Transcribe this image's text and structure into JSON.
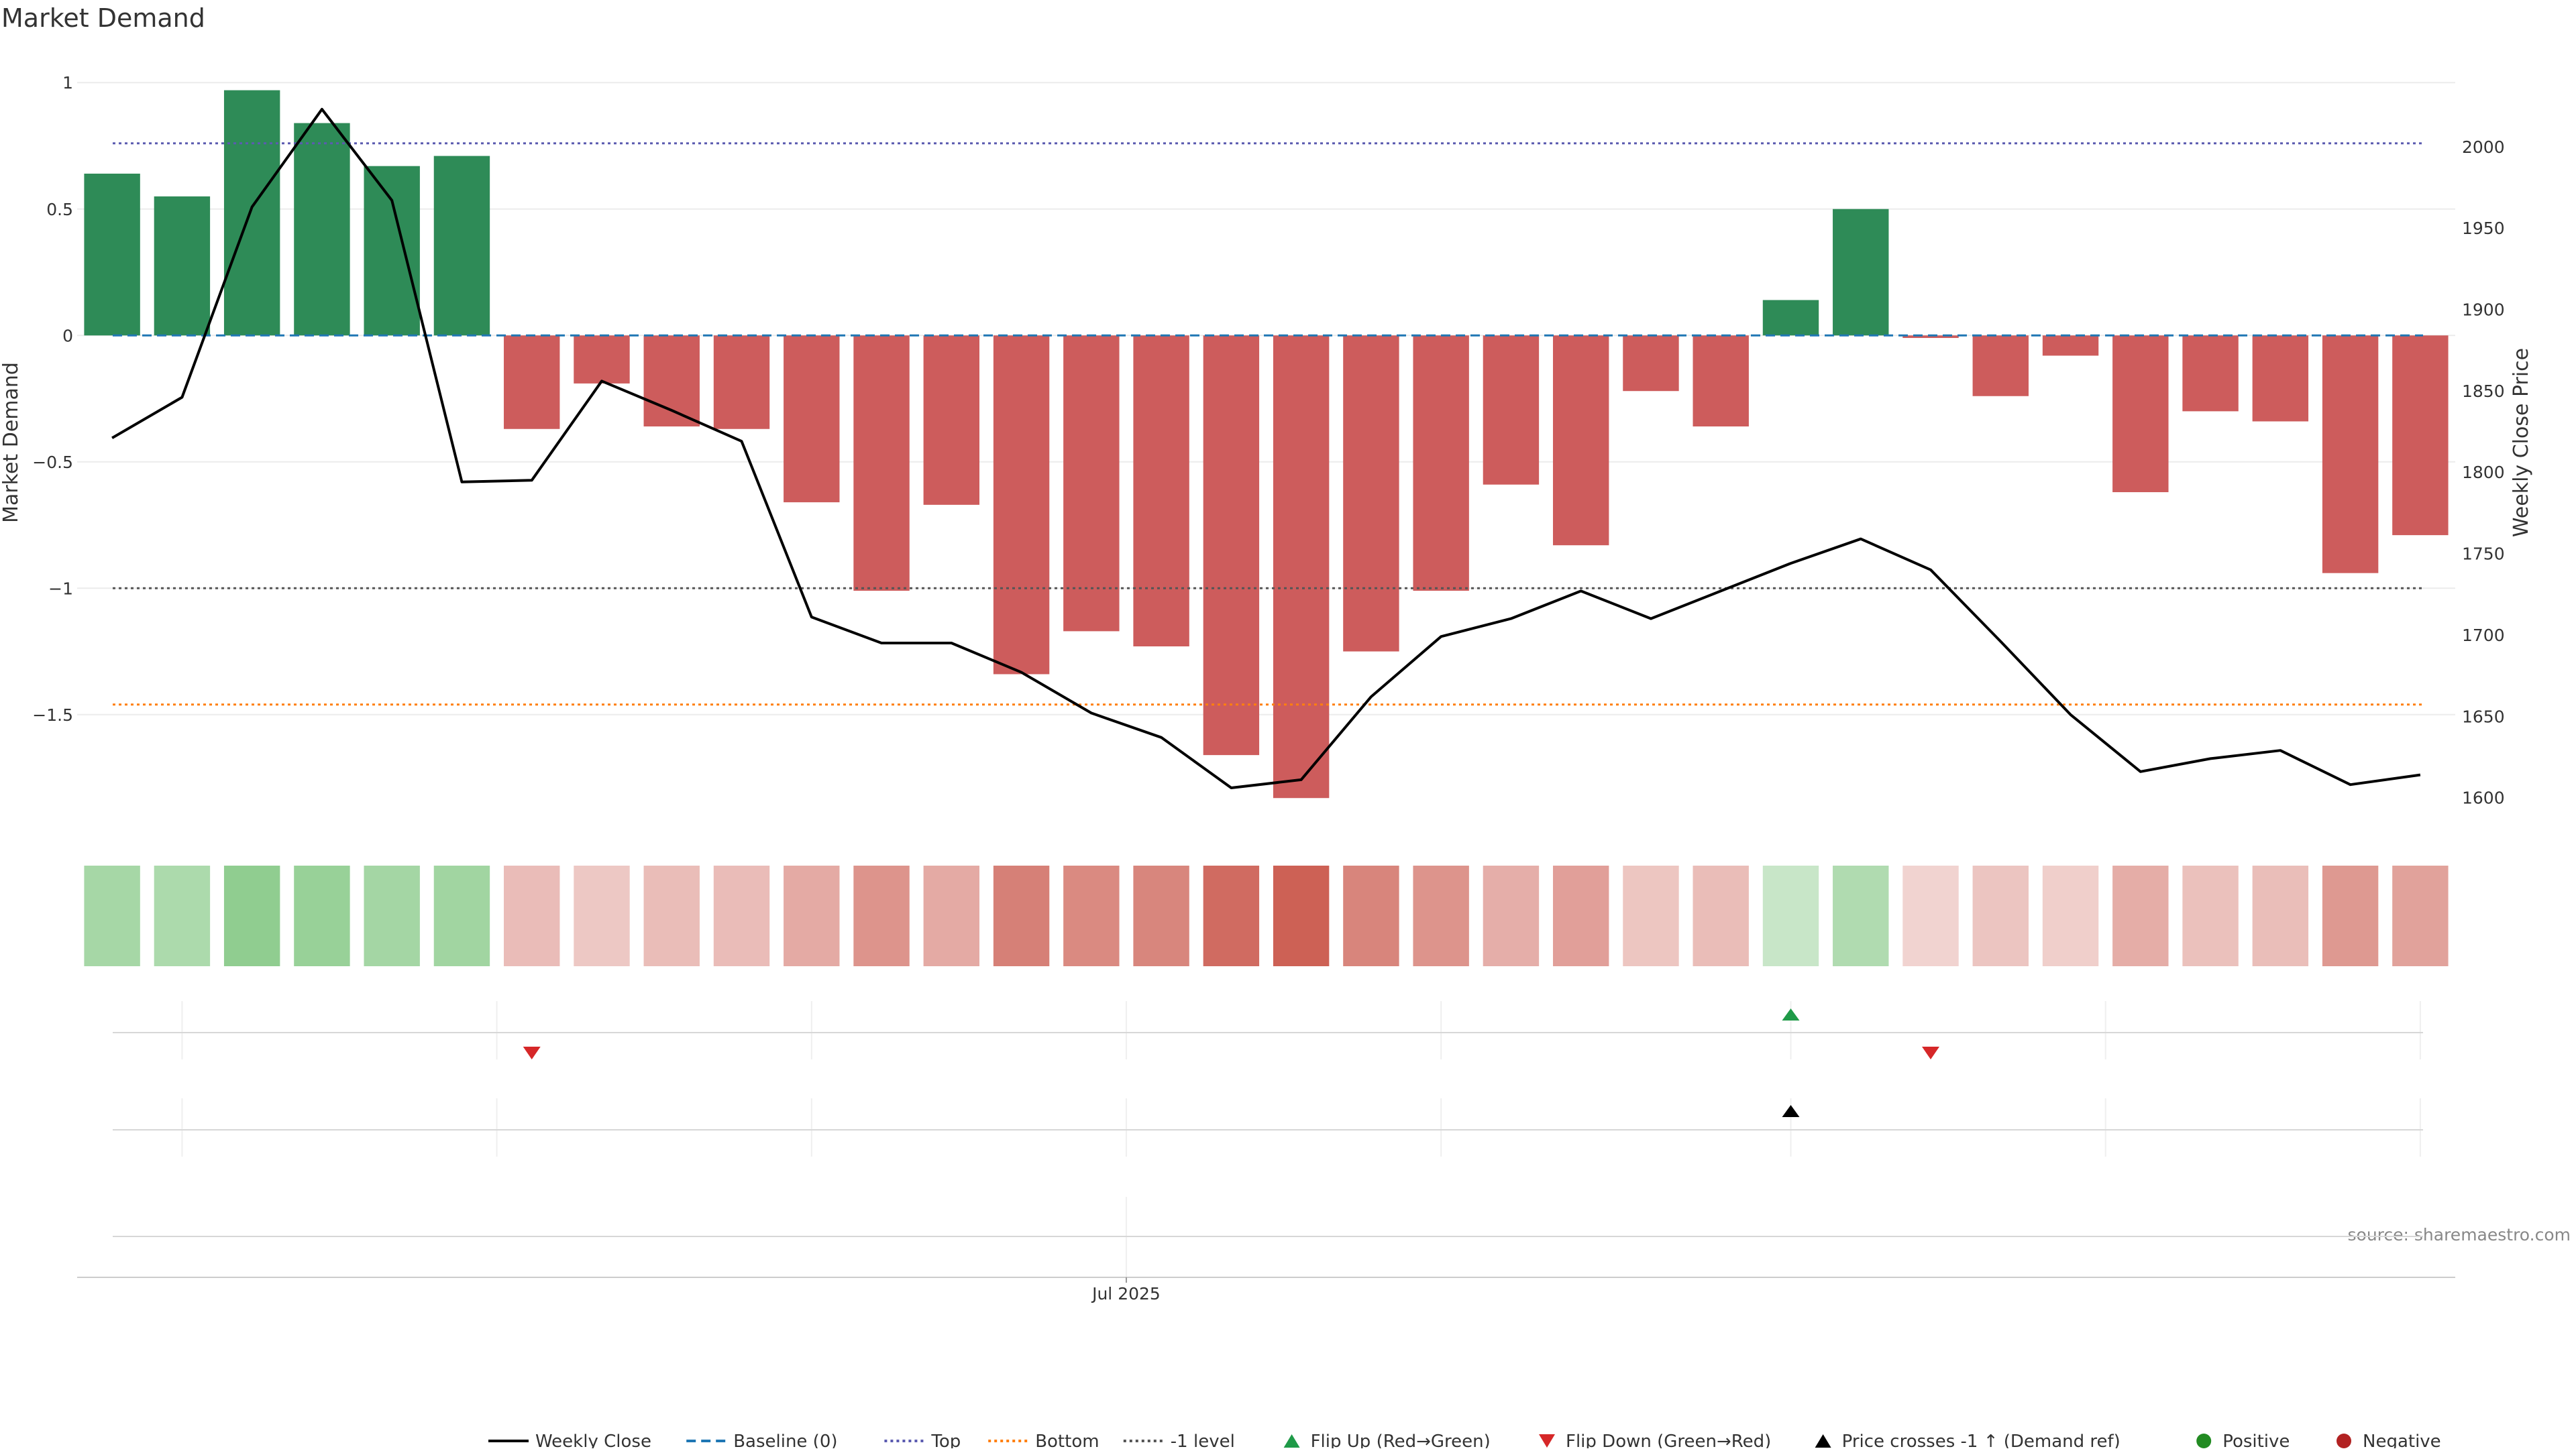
{
  "chart_data": {
    "type": "bar",
    "title": "Market Demand",
    "ylabel": "Market Demand",
    "y2label": "Weekly Close Price",
    "source": "source: sharemaestro.com",
    "x_tick_label": "Jul 2025",
    "x_tick_index": 14.5,
    "ylim": [
      -1.97,
      1.12
    ],
    "y2lim": [
      1578,
      2058
    ],
    "yticks": [
      {
        "v": 1,
        "t": "1"
      },
      {
        "v": 0.5,
        "t": "0.5"
      },
      {
        "v": 0,
        "t": "0"
      },
      {
        "v": -0.5,
        "t": "−0.5"
      },
      {
        "v": -1,
        "t": "−1"
      },
      {
        "v": -1.5,
        "t": "−1.5"
      }
    ],
    "y2ticks": [
      {
        "v": 2000,
        "t": "2000"
      },
      {
        "v": 1950,
        "t": "1950"
      },
      {
        "v": 1900,
        "t": "1900"
      },
      {
        "v": 1850,
        "t": "1850"
      },
      {
        "v": 1800,
        "t": "1800"
      },
      {
        "v": 1750,
        "t": "1750"
      },
      {
        "v": 1700,
        "t": "1700"
      },
      {
        "v": 1650,
        "t": "1650"
      },
      {
        "v": 1600,
        "t": "1600"
      }
    ],
    "demand": [
      0.64,
      0.55,
      0.97,
      0.84,
      0.67,
      0.71,
      -0.37,
      -0.19,
      -0.36,
      -0.37,
      -0.66,
      -1.01,
      -0.67,
      -1.34,
      -1.17,
      -1.23,
      -1.66,
      -1.83,
      -1.25,
      -1.01,
      -0.59,
      -0.83,
      -0.22,
      -0.36,
      0.14,
      0.5,
      -0.01,
      -0.24,
      -0.08,
      -0.62,
      -0.3,
      -0.34,
      -0.94,
      -0.79
    ],
    "weekly_close": [
      1821,
      1846,
      1963,
      2023,
      1967,
      1794,
      1795,
      1856,
      1838,
      1819,
      1711,
      1695,
      1695,
      1677,
      1652,
      1637,
      1606,
      1611,
      1662,
      1699,
      1710,
      1727,
      1710,
      1727,
      1744,
      1759,
      1740,
      1696,
      1651,
      1616,
      1624,
      1629,
      1608,
      1614
    ],
    "reference_lines": {
      "baseline": 0,
      "top": 0.76,
      "bottom": -1.46,
      "minus_one_level": -1
    },
    "flip_up_index": [
      24
    ],
    "flip_down_index": [
      6,
      26
    ],
    "price_cross_index": [
      24
    ],
    "colors": {
      "positive_bar": "#2e8b57",
      "negative_bar": "#cd5c5c",
      "close_line": "#000000",
      "baseline": "#1f77b4",
      "top": "#5b5bb0",
      "bottom": "#ff7f0e",
      "minus_one": "#555555",
      "flip_up": "#1f9a48",
      "flip_down": "#d62728",
      "cross": "#000000",
      "positive_dot": "#228b22",
      "negative_dot": "#b22222",
      "heat_positive": "#2ca02c",
      "heat_negative": "#c0392b"
    },
    "legend": [
      {
        "label": "Weekly Close",
        "kind": "line",
        "color": "#000000",
        "dash": ""
      },
      {
        "label": "Baseline (0)",
        "kind": "line",
        "color": "#1f77b4",
        "dash": "14,8"
      },
      {
        "label": "Top",
        "kind": "line",
        "color": "#5b5bb0",
        "dash": "4,5"
      },
      {
        "label": "Bottom",
        "kind": "line",
        "color": "#ff7f0e",
        "dash": "4,5"
      },
      {
        "label": "-1 level",
        "kind": "line",
        "color": "#555555",
        "dash": "4,5"
      },
      {
        "label": "Flip Up (Red→Green)",
        "kind": "tri-up",
        "color": "#1f9a48"
      },
      {
        "label": "Flip Down (Green→Red)",
        "kind": "tri-down",
        "color": "#d62728"
      },
      {
        "label": "Price crosses -1 ↑ (Demand ref)",
        "kind": "tri-up",
        "color": "#000000"
      },
      {
        "label": "Positive",
        "kind": "dot",
        "color": "#228b22"
      },
      {
        "label": "Negative",
        "kind": "dot",
        "color": "#b22222"
      }
    ]
  }
}
